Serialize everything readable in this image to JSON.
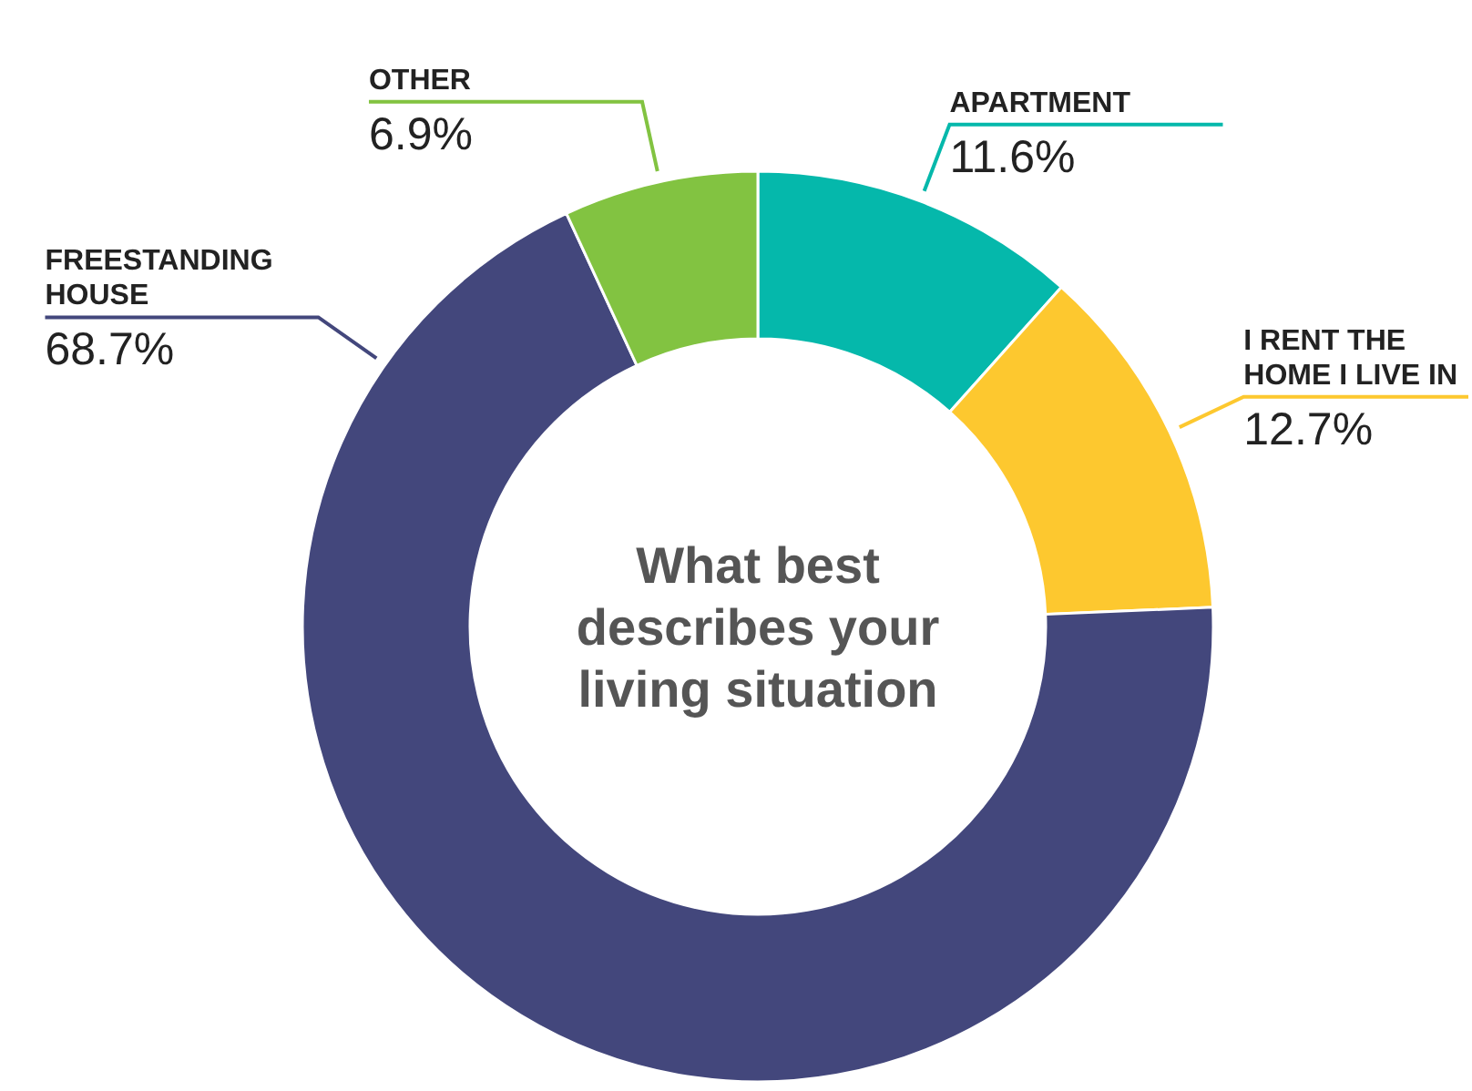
{
  "chart_data": {
    "type": "donut",
    "title": "What best describes your living situation",
    "categories": [
      "APARTMENT",
      "I RENT THE HOME I LIVE IN",
      "FREESTANDING HOUSE",
      "OTHER"
    ],
    "values": [
      11.6,
      12.7,
      68.7,
      6.9
    ],
    "value_labels": [
      "11.6%",
      "12.7%",
      "68.7%",
      "6.9%"
    ],
    "colors": [
      "#05b8ab",
      "#fdc82f",
      "#43477c",
      "#82c341"
    ]
  }
}
